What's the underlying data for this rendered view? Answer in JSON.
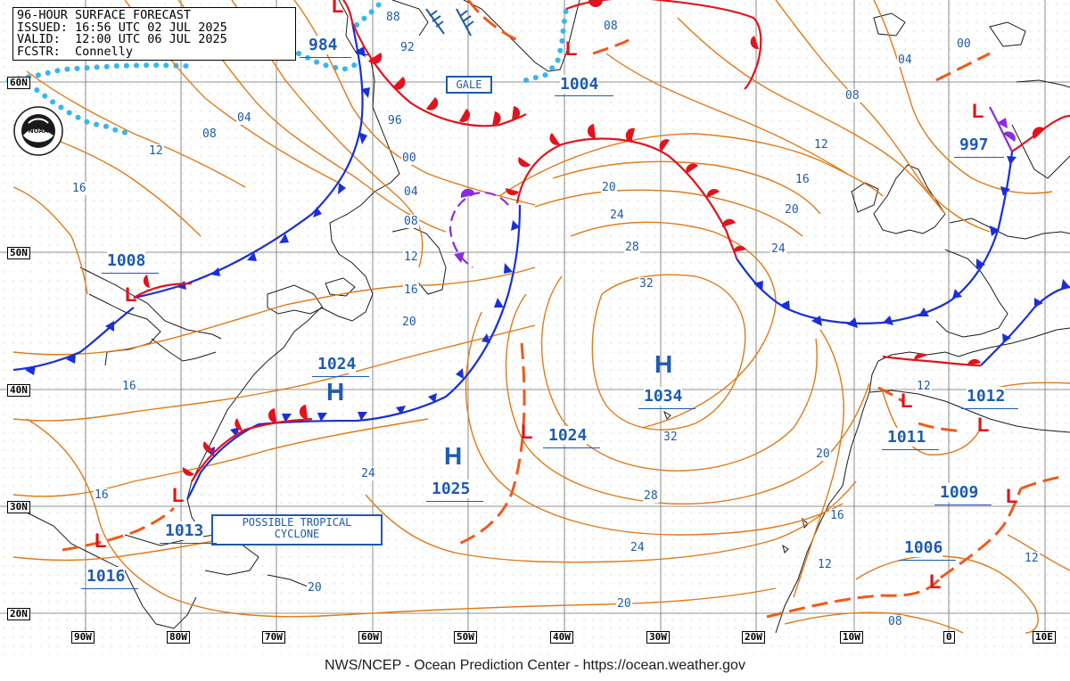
{
  "header": {
    "line1": "96-HOUR SURFACE FORECAST",
    "line2": "ISSUED: 16:56 UTC 02 JUL 2025",
    "line3": "VALID:  12:00 UTC 06 JUL 2025",
    "line4": "FCSTR:  Connelly"
  },
  "footer": "NWS/NCEP - Ocean Prediction Center - https://ocean.weather.gov",
  "logo_text": "NOAA",
  "latitude_labels": [
    "60N",
    "50N",
    "40N",
    "30N",
    "20N"
  ],
  "longitude_labels": [
    "90W",
    "80W",
    "70W",
    "60W",
    "50W",
    "40W",
    "30W",
    "20W",
    "10W",
    "0",
    "10E"
  ],
  "boxed_labels": {
    "gale": "GALE",
    "tropical_line1": "POSSIBLE TROPICAL",
    "tropical_line2": "CYCLONE"
  },
  "pressure_centers": [
    {
      "type": "L",
      "value": "984"
    },
    {
      "type": "L",
      "value": "1004"
    },
    {
      "type": "L",
      "value": "997"
    },
    {
      "type": "L",
      "value": "1008"
    },
    {
      "type": "H",
      "value": "1024"
    },
    {
      "type": "H",
      "value": "1034"
    },
    {
      "type": "L",
      "value": "1024"
    },
    {
      "type": "H",
      "value": "1025"
    },
    {
      "type": "L",
      "value": "1012"
    },
    {
      "type": "L",
      "value": "1011"
    },
    {
      "type": "L",
      "value": "1013"
    },
    {
      "type": "L",
      "value": "1016"
    },
    {
      "type": "L",
      "value": "1009"
    },
    {
      "type": "L",
      "value": "1006"
    }
  ],
  "isobar_labels": [
    "88",
    "92",
    "96",
    "00",
    "04",
    "08",
    "12",
    "16",
    "20",
    "24",
    "28",
    "32",
    "08",
    "00",
    "04",
    "08",
    "12",
    "16",
    "20",
    "24",
    "04",
    "08",
    "12",
    "16",
    "16",
    "24",
    "32",
    "28",
    "24",
    "20",
    "20",
    "20",
    "16",
    "12",
    "08",
    "12",
    "12",
    "16",
    "20"
  ],
  "colors": {
    "isobar": "#e07a18",
    "cold_front": "#1a2fd6",
    "warm_front": "#e0141e",
    "occluded_front": "#8a2be2",
    "ice_edge": "#39b6ec",
    "label_blue": "#1e5bb0",
    "grid": "#888888"
  }
}
